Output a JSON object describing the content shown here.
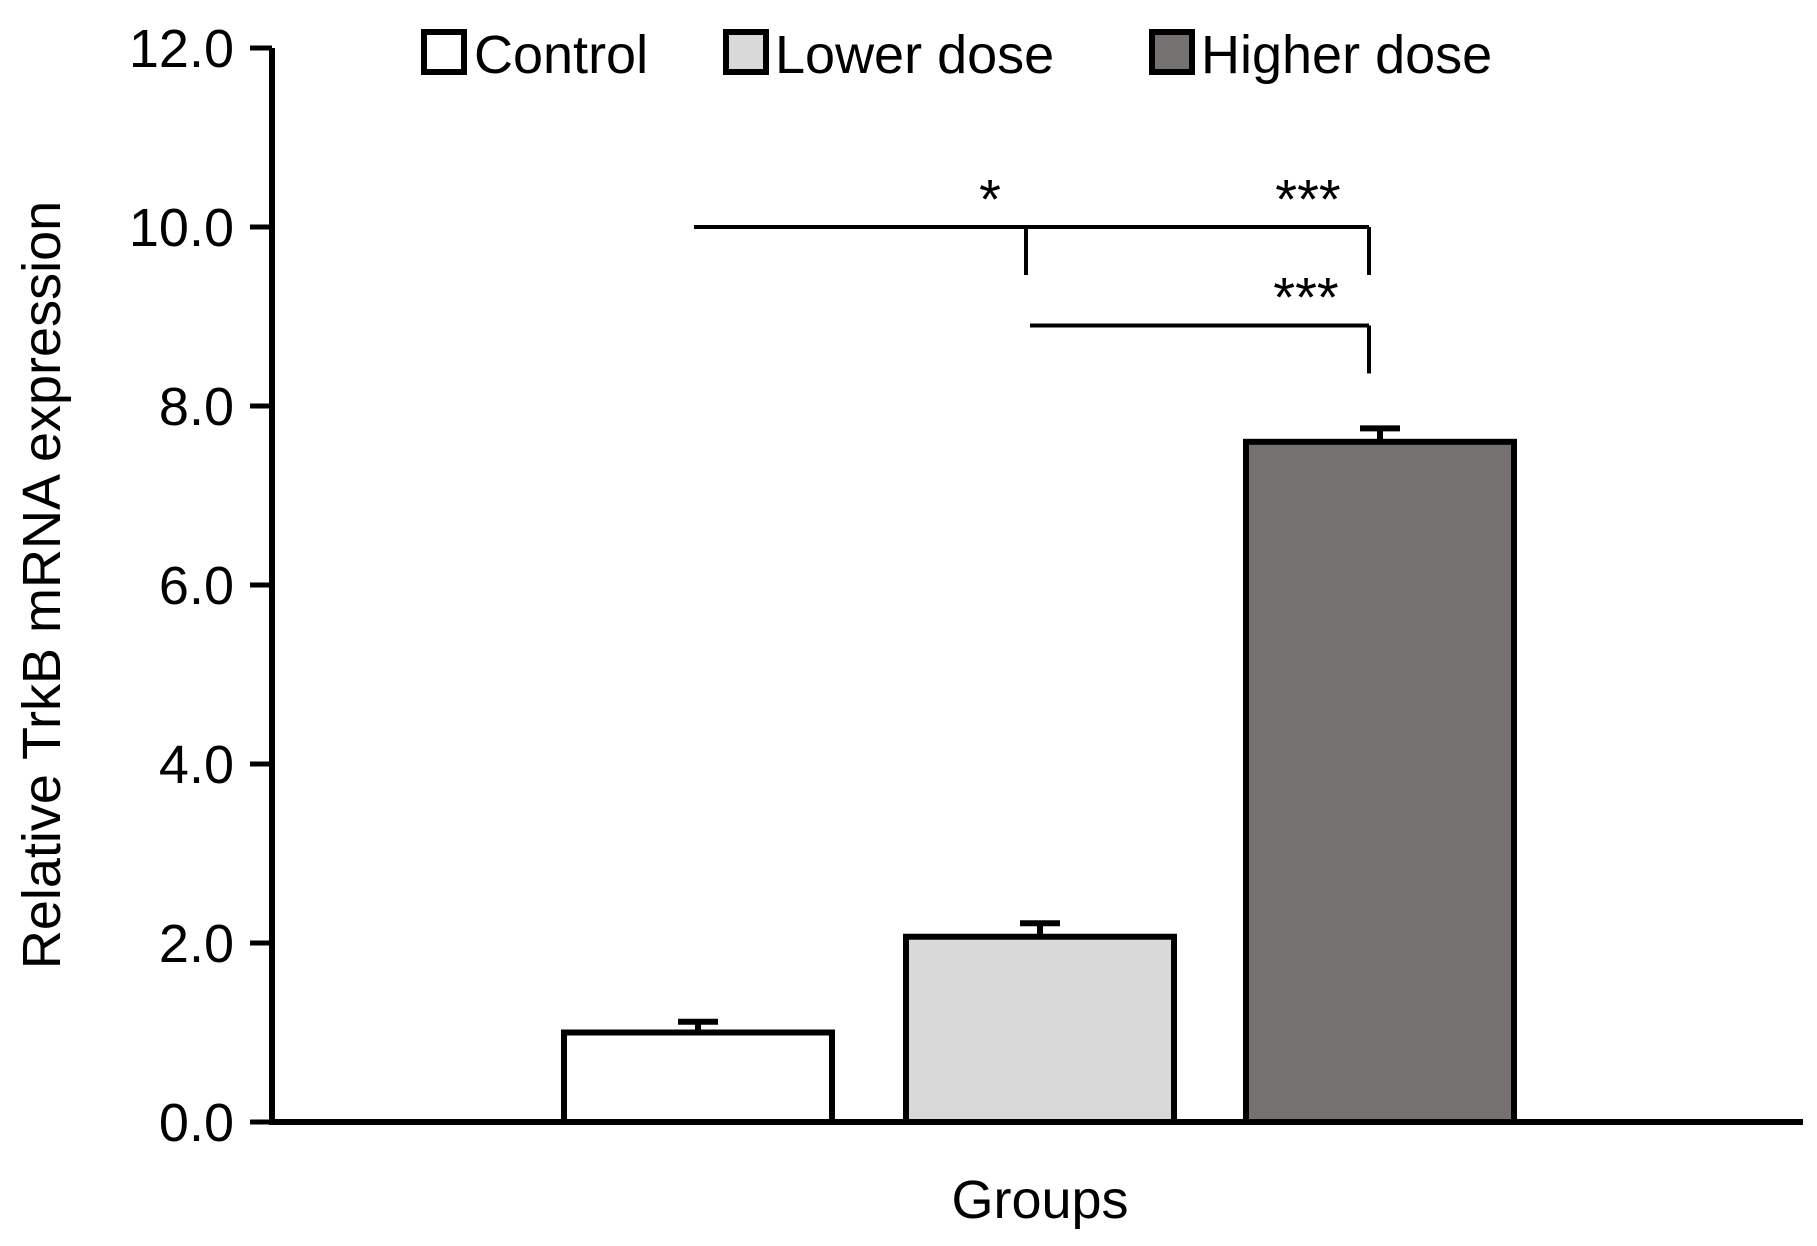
{
  "chart_data": {
    "type": "bar",
    "title": "",
    "xlabel": "Groups",
    "ylabel": "Relative TrkB mRNA expression",
    "ylim": [
      0,
      12
    ],
    "yticks": [
      {
        "value": 0,
        "label": "0.0"
      },
      {
        "value": 2,
        "label": "2.0"
      },
      {
        "value": 4,
        "label": "4.0"
      },
      {
        "value": 6,
        "label": "6.0"
      },
      {
        "value": 8,
        "label": "8.0"
      },
      {
        "value": 10,
        "label": "10.0"
      },
      {
        "value": 12,
        "label": "12.0"
      }
    ],
    "legend_position": "top",
    "series": [
      {
        "name": "Control",
        "value": 1.0,
        "error": 0.12,
        "color": "#ffffff"
      },
      {
        "name": "Lower dose",
        "value": 2.07,
        "error": 0.15,
        "color": "#d9d9d9"
      },
      {
        "name": "Higher dose",
        "value": 7.6,
        "error": 0.15,
        "color": "#767171"
      }
    ],
    "significance": [
      {
        "label": "*",
        "from": 0,
        "to": 2,
        "level": 10.0,
        "star_value": 10.5
      },
      {
        "label": "***",
        "from": 1,
        "to": 2,
        "level": 10.0,
        "star_value": 10.5
      },
      {
        "label": "***",
        "from": 1,
        "to": 2,
        "level": 8.9,
        "star_value": 9.4
      }
    ]
  }
}
